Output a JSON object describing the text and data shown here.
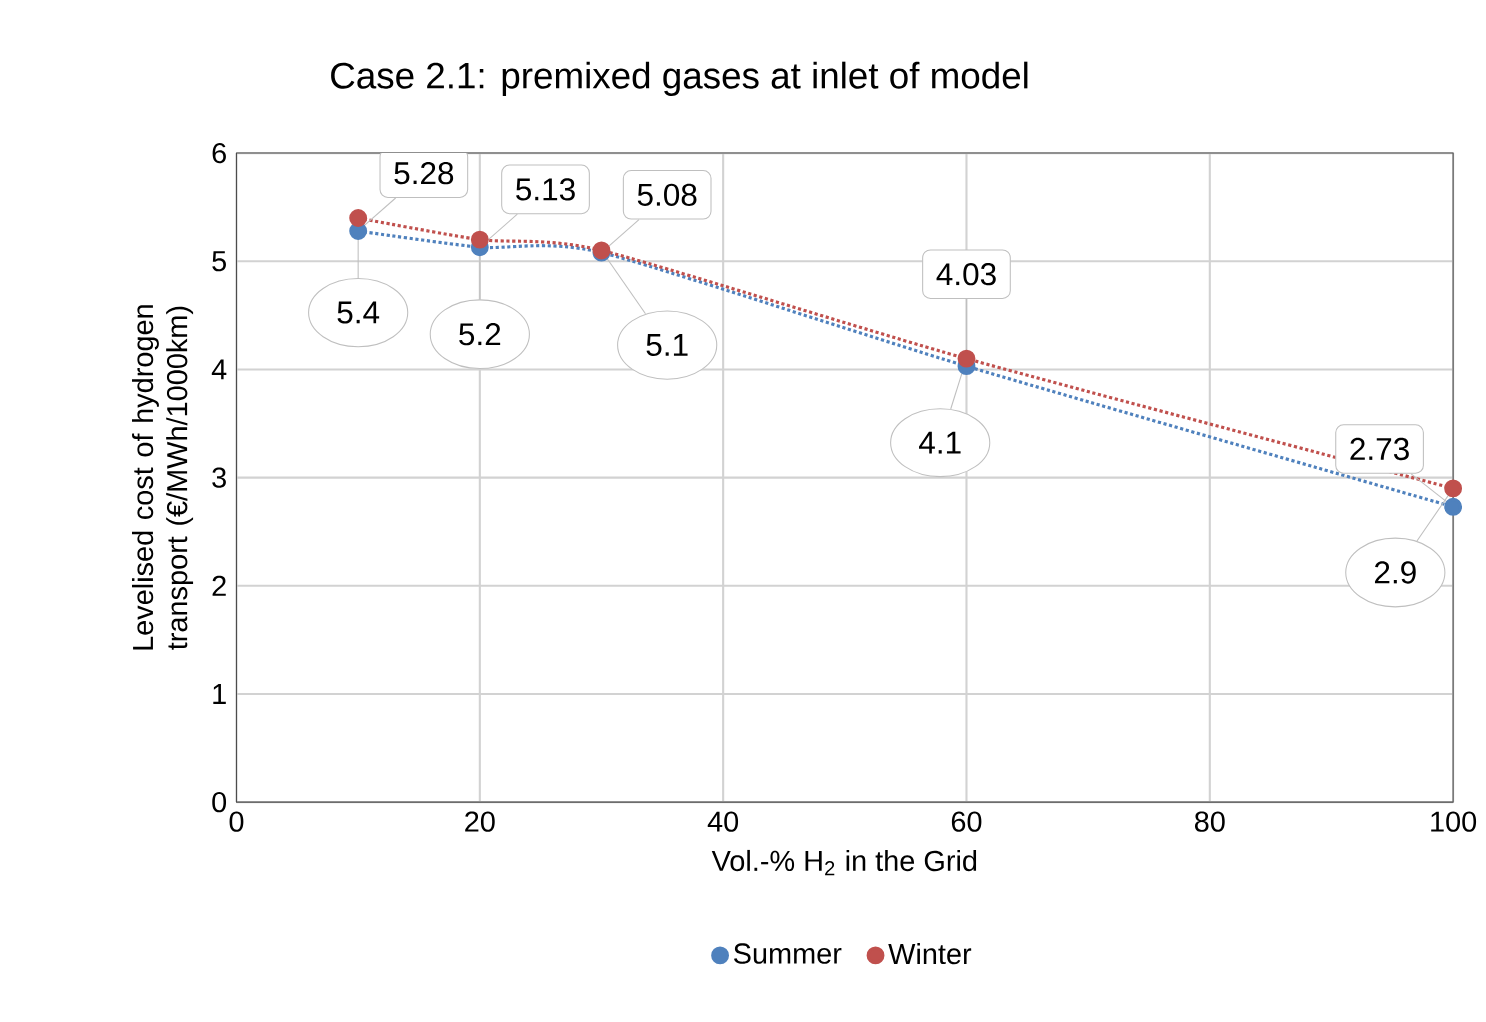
{
  "chart_data": {
    "type": "line",
    "title": "Case 2.1: premixed gases at inlet of model",
    "xlabel": "Vol.-% H$_{2}$ in the Grid",
    "ylabel": "Levelised cost of hydrogen transport (€/MWh/1000km)",
    "x": [
      10,
      20,
      30,
      60,
      100
    ],
    "series": [
      {
        "name": "Summer",
        "color": "#4f81bd",
        "values": [
          5.28,
          5.13,
          5.08,
          4.03,
          2.73
        ]
      },
      {
        "name": "Winter",
        "color": "#c0504d",
        "values": [
          5.4,
          5.2,
          5.1,
          4.1,
          2.9
        ]
      }
    ],
    "xlim": [
      0,
      100
    ],
    "xticks": [
      0,
      20,
      40,
      60,
      80,
      100
    ],
    "ylim": [
      0,
      6
    ],
    "yticks": [
      0,
      1,
      2,
      3,
      4,
      5,
      6
    ],
    "grid": true,
    "legend": "bottom",
    "marker": "circle",
    "line_style": "dotted",
    "data_labels": true
  }
}
